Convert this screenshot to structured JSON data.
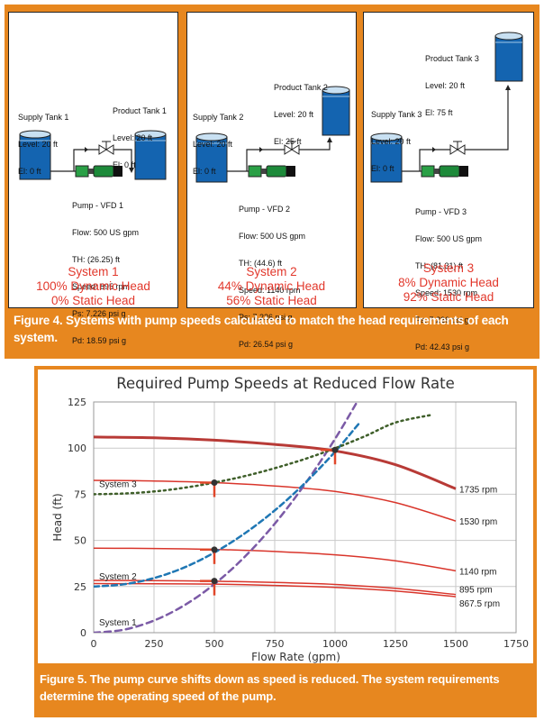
{
  "figure4": {
    "caption": "Figure 4. Systems with pump speeds calculated to match the head requirements of each system.",
    "systems": [
      {
        "supply_tank": [
          "Supply Tank 1",
          "Level: 20 ft",
          "El: 0 ft"
        ],
        "product_tank": [
          "Product Tank 1",
          "Level: 20 ft",
          "El: 0 ft"
        ],
        "pump": [
          "Pump - VFD 1",
          "Flow: 500 US gpm",
          "TH: (26.25) ft",
          "Speed: 895 rpm",
          "Ps: 7.226 psi g",
          "Pd: 18.59 psi g"
        ],
        "title": "System 1",
        "dynamic": "100% Dynamic Head",
        "static": "0% Static Head"
      },
      {
        "supply_tank": [
          "Supply Tank 2",
          "Level: 20 ft",
          "El: 0 ft"
        ],
        "product_tank": [
          "Product Tank 2",
          "Level: 20 ft",
          "El: 25 ft"
        ],
        "pump": [
          "Pump - VFD 2",
          "Flow: 500 US gpm",
          "TH: (44.6) ft",
          "Speed: 1140 rpm",
          "Ps: 7.226 psi g",
          "Pd: 26.54 psi g"
        ],
        "title": "System 2",
        "dynamic": "44% Dynamic Head",
        "static": "56% Static Head"
      },
      {
        "supply_tank": [
          "Supply Tank 3",
          "Level: 20 ft",
          "El: 0 ft"
        ],
        "product_tank": [
          "Product Tank 3",
          "Level: 20 ft",
          "El: 75 ft"
        ],
        "pump": [
          "Pump - VFD 3",
          "Flow: 500 US gpm",
          "TH: (81.31) ft",
          "Speed: 1530 rpm",
          "Ps: 7.226 psi g",
          "Pd: 42.43 psi g"
        ],
        "title": "System 3",
        "dynamic": "8% Dynamic Head",
        "static": "92% Static Head"
      }
    ]
  },
  "figure5": {
    "caption": "Figure 5. The pump curve shifts down as speed is reduced. The system requirements determine the operating speed of the pump.",
    "chart_data": {
      "type": "line",
      "title": "Required Pump Speeds at Reduced Flow Rate",
      "xlabel": "Flow Rate (gpm)",
      "ylabel": "Head (ft)",
      "xlim": [
        0,
        1750
      ],
      "ylim": [
        0,
        125
      ],
      "x_ticks": [
        0,
        250,
        500,
        750,
        1000,
        1250,
        1500,
        1750
      ],
      "y_ticks": [
        0,
        25,
        50,
        75,
        100,
        125
      ],
      "grid": true,
      "pump_curves": [
        {
          "name": "1735 rpm",
          "x": [
            0,
            250,
            500,
            750,
            1000,
            1250,
            1500
          ],
          "y": [
            106,
            105.6,
            104.3,
            102,
            98.5,
            91,
            78
          ]
        },
        {
          "name": "1530 rpm",
          "x": [
            0,
            250,
            500,
            750,
            1000,
            1250,
            1500
          ],
          "y": [
            82.5,
            82.2,
            81.3,
            79.5,
            76.5,
            70.5,
            60.5
          ]
        },
        {
          "name": "1140 rpm",
          "x": [
            0,
            250,
            500,
            750,
            1000,
            1250,
            1500
          ],
          "y": [
            45.8,
            45.6,
            45.1,
            44,
            42.2,
            38.9,
            33.5
          ]
        },
        {
          "name": "895 rpm",
          "x": [
            0,
            250,
            500,
            750,
            1000,
            1250,
            1500
          ],
          "y": [
            28.3,
            28.2,
            27.9,
            27.2,
            26.1,
            24,
            20.7
          ]
        },
        {
          "name": "867.5 rpm",
          "x": [
            0,
            250,
            500,
            750,
            1000,
            1250,
            1500
          ],
          "y": [
            26.6,
            26.5,
            26.3,
            25.6,
            24.5,
            22.6,
            19.5
          ]
        }
      ],
      "system_curves": [
        {
          "name": "System 1",
          "color": "#7b5aa6",
          "x": [
            0,
            125,
            250,
            375,
            500,
            625,
            750,
            875,
            1000,
            1100,
            1150
          ],
          "y": [
            0,
            1.6,
            6.6,
            14.8,
            26.3,
            41,
            59,
            80.4,
            105,
            127,
            138.8
          ]
        },
        {
          "name": "System 2",
          "color": "#1f77b4",
          "x": [
            0,
            125,
            250,
            375,
            500,
            625,
            750,
            875,
            1000,
            1100
          ],
          "y": [
            25,
            26.2,
            29.6,
            35.3,
            43.4,
            53.7,
            66.2,
            81,
            98,
            113.5
          ]
        },
        {
          "name": "System 3",
          "color": "#3f5f2a",
          "x": [
            0,
            125,
            250,
            375,
            500,
            625,
            750,
            875,
            1000,
            1125,
            1250,
            1400
          ],
          "y": [
            75,
            75.4,
            76.5,
            78.5,
            81.3,
            84.8,
            89.1,
            94.1,
            99.9,
            106.5,
            113.8,
            118
          ]
        }
      ],
      "operating_points": [
        {
          "x": 500,
          "y": 81.3
        },
        {
          "x": 500,
          "y": 45
        },
        {
          "x": 500,
          "y": 28
        },
        {
          "x": 1000,
          "y": 99
        }
      ],
      "colors": {
        "pump_curve": "#d9352b",
        "pump_curve_max": "#b83a36",
        "marker": "#e0472a"
      }
    }
  }
}
